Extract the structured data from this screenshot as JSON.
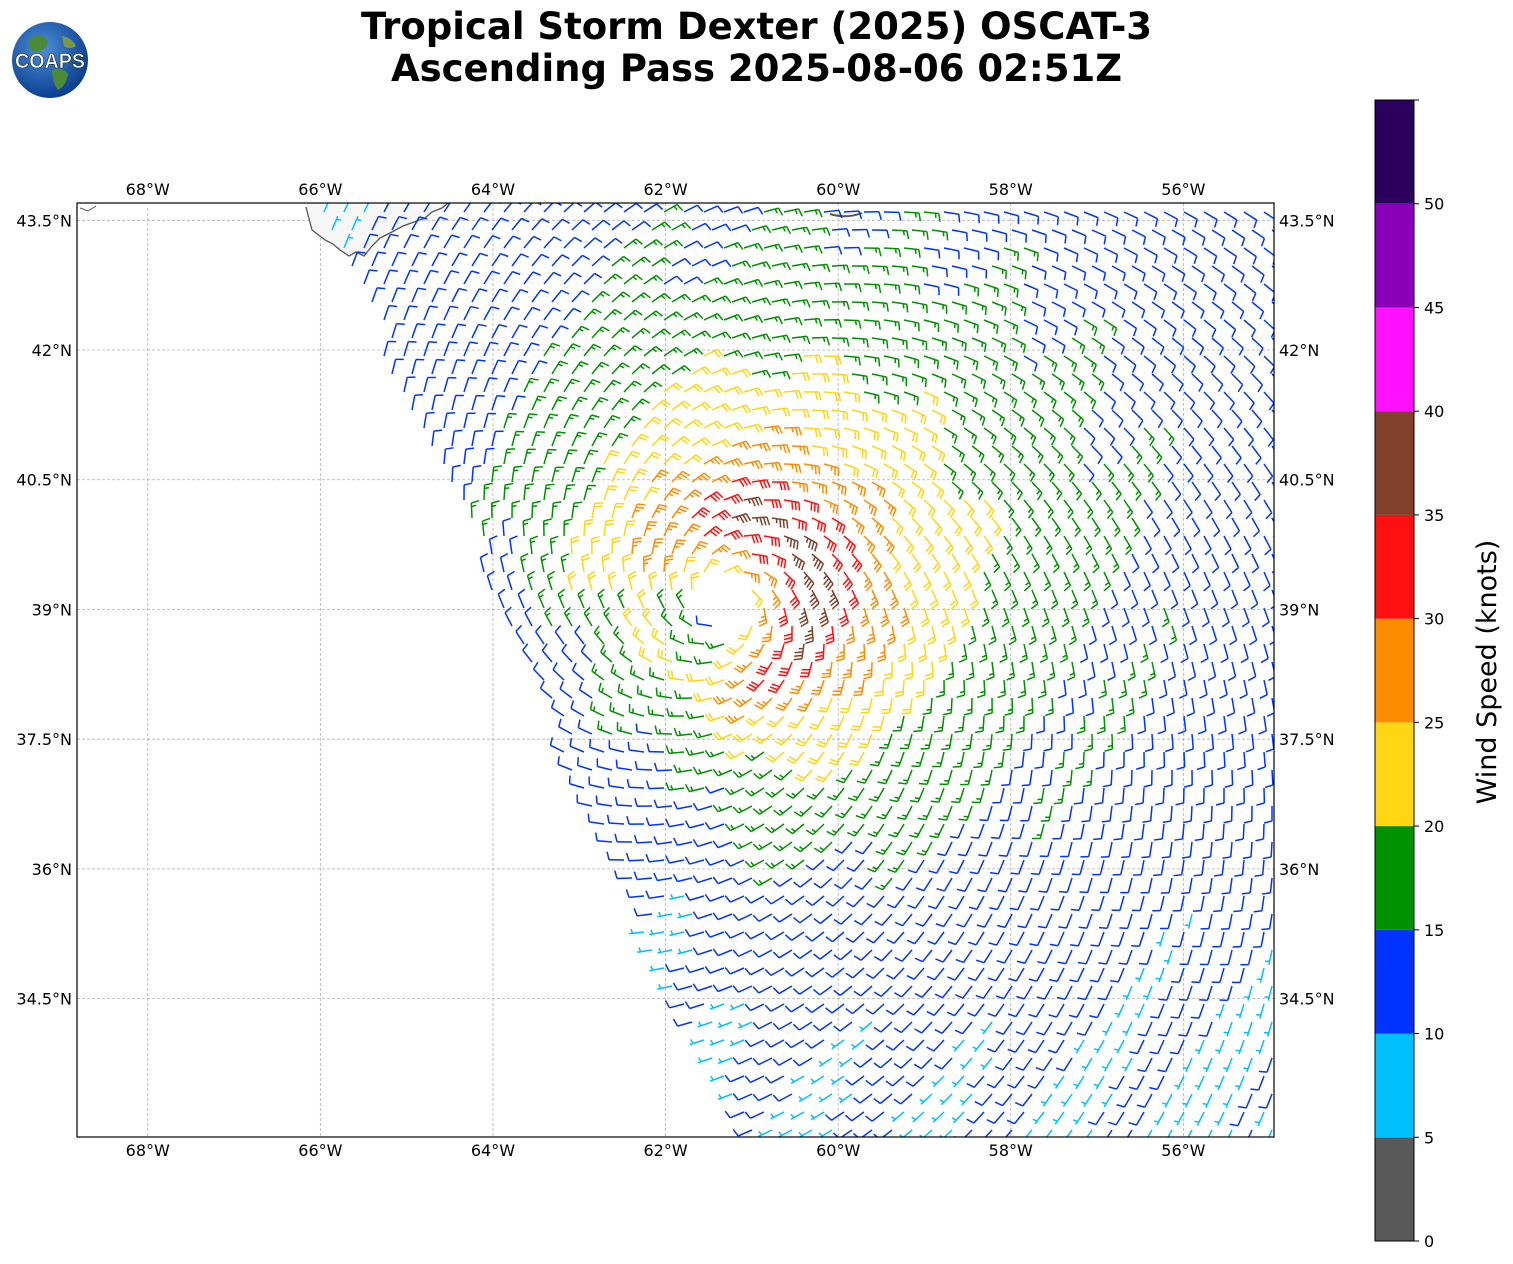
{
  "title": {
    "line1": "Tropical Storm Dexter (2025) OSCAT-3",
    "line2": "Ascending Pass 2025-08-06 02:51Z"
  },
  "logo": {
    "text": "COAPS",
    "icon": "globe-icon"
  },
  "map": {
    "lon_range": [
      -68.82,
      -54.95
    ],
    "lat_range": [
      32.9,
      43.7
    ],
    "lon_ticks": [
      "68°W",
      "66°W",
      "64°W",
      "62°W",
      "60°W",
      "58°W",
      "56°W"
    ],
    "lon_tick_values": [
      -68,
      -66,
      -64,
      -62,
      -60,
      -58,
      -56
    ],
    "lat_ticks": [
      "34.5°N",
      "36°N",
      "37.5°N",
      "39°N",
      "40.5°N",
      "42°N",
      "43.5°N"
    ],
    "lat_tick_values": [
      34.5,
      36,
      37.5,
      39,
      40.5,
      42,
      43.5
    ],
    "grid": true,
    "storm_center": {
      "lon": -61.3,
      "lat": 39.1
    }
  },
  "colorbar": {
    "label": "Wind Speed (knots)",
    "ticks": [
      "0",
      "5",
      "10",
      "15",
      "20",
      "25",
      "30",
      "35",
      "40",
      "45",
      "50"
    ],
    "bins": [
      {
        "min": 0,
        "max": 5,
        "color": "#595959"
      },
      {
        "min": 5,
        "max": 10,
        "color": "#00bfff"
      },
      {
        "min": 10,
        "max": 15,
        "color": "#0033ff"
      },
      {
        "min": 15,
        "max": 20,
        "color": "#009100"
      },
      {
        "min": 20,
        "max": 25,
        "color": "#ffd614"
      },
      {
        "min": 25,
        "max": 30,
        "color": "#ff8c00"
      },
      {
        "min": 30,
        "max": 35,
        "color": "#ff1010"
      },
      {
        "min": 35,
        "max": 40,
        "color": "#80402a"
      },
      {
        "min": 40,
        "max": 45,
        "color": "#ff10ff"
      },
      {
        "min": 45,
        "max": 50,
        "color": "#8a00b8"
      },
      {
        "min": 50,
        "max": 55,
        "color": "#2b005c"
      }
    ]
  }
}
